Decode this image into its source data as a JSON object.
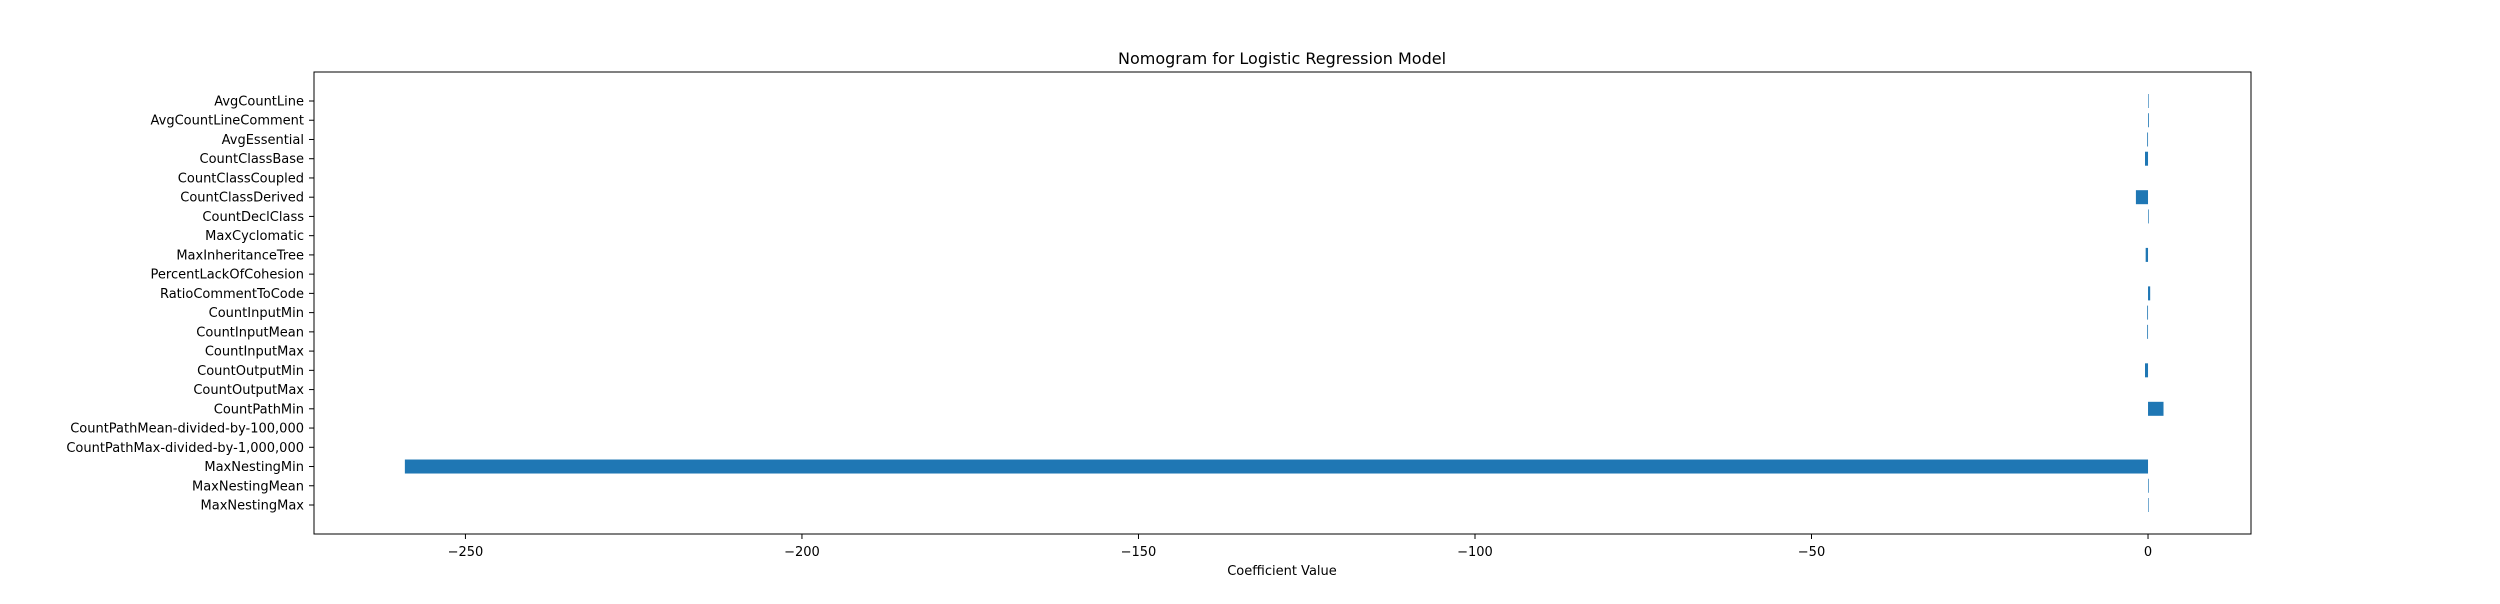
{
  "chart_data": {
    "type": "bar",
    "orientation": "horizontal",
    "title": "Nomogram for Logistic Regression Model",
    "xlabel": "Coefficient Value",
    "ylabel": "",
    "xlim": [
      -272.5,
      15.3
    ],
    "xticks": [
      -250,
      -200,
      -150,
      -100,
      -50,
      0
    ],
    "xtick_labels": [
      "−250",
      "−200",
      "−150",
      "−100",
      "−50",
      "0"
    ],
    "grid": false,
    "bar_color": "#1f77b4",
    "categories": [
      "AvgCountLine",
      "AvgCountLineComment",
      "AvgEssential",
      "CountClassBase",
      "CountClassCoupled",
      "CountClassDerived",
      "CountDeclClass",
      "MaxCyclomatic",
      "MaxInheritanceTree",
      "PercentLackOfCohesion",
      "RatioCommentToCode",
      "CountInputMin",
      "CountInputMean",
      "CountInputMax",
      "CountOutputMin",
      "CountOutputMax",
      "CountPathMin",
      "CountPathMean-divided-by-100,000",
      "CountPathMax-divided-by-1,000,000",
      "MaxNestingMin",
      "MaxNestingMean",
      "MaxNestingMax"
    ],
    "values": [
      0.01,
      0.12,
      -0.12,
      -0.45,
      0.0,
      -1.8,
      0.1,
      0.0,
      -0.35,
      0.0,
      0.32,
      -0.12,
      -0.12,
      0.0,
      -0.45,
      0.0,
      2.3,
      0.0,
      0.0,
      -259.0,
      0.1,
      0.06
    ]
  }
}
